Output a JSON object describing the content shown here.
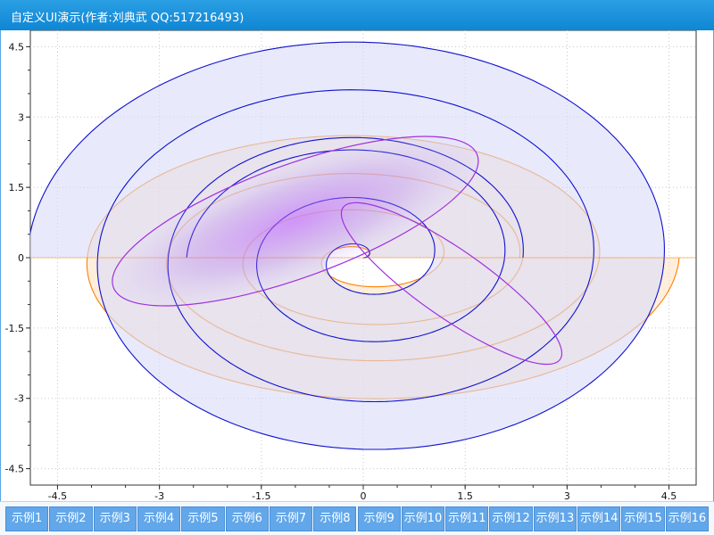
{
  "window": {
    "title": "自定义UI演示(作者:刘典武 QQ:517216493)"
  },
  "chart_data": {
    "type": "line",
    "title": "",
    "xlabel": "",
    "ylabel": "",
    "xlim": [
      -4.9,
      4.9
    ],
    "ylim": [
      -4.85,
      4.85
    ],
    "x_ticks": [
      -4.5,
      -3,
      -1.5,
      0,
      1.5,
      3,
      4.5
    ],
    "x_tick_labels": [
      "-4.5",
      "-3",
      "-1.5",
      "0",
      "1.5",
      "3",
      "4.5"
    ],
    "y_ticks": [
      4.5,
      3,
      1.5,
      0,
      -1.5,
      -3,
      -4.5
    ],
    "y_tick_labels": [
      "4.5",
      "3",
      "1.5",
      "0",
      "-1.5",
      "-3",
      "-4.5"
    ],
    "grid": true,
    "grid_style": "dotted",
    "legend": "none",
    "series": [
      {
        "kind": "spiral-band",
        "color": "#ff8000",
        "fill": "#ffe3c4",
        "theta_max_turns": 2.0,
        "inner_radius_start": 0,
        "inner_radius_end": 2.35,
        "outer_radius_end": 4.65,
        "x_scale": 1.0,
        "y_scale": 0.69
      },
      {
        "kind": "spiral-band",
        "color": "#1010d0",
        "fill": "#d8dcf8",
        "theta_max_turns": 2.5,
        "inner_radius_start": 0,
        "inner_radius_end": 2.6,
        "outer_radius_end": 4.95,
        "x_scale": 1.0,
        "y_scale": 0.98
      },
      {
        "kind": "ellipse",
        "color": "#a030e0",
        "cx": -1.0,
        "cy": 0.78,
        "rx": 2.85,
        "ry": 1.2,
        "rotation_deg": -20
      },
      {
        "kind": "ellipse",
        "color": "#a030e0",
        "cx": 1.3,
        "cy": -0.55,
        "rx": 1.95,
        "ry": 0.72,
        "rotation_deg": 35
      }
    ]
  },
  "buttons": [
    {
      "label": "示例1"
    },
    {
      "label": "示例2"
    },
    {
      "label": "示例3"
    },
    {
      "label": "示例4"
    },
    {
      "label": "示例5"
    },
    {
      "label": "示例6"
    },
    {
      "label": "示例7"
    },
    {
      "label": "示例8"
    },
    {
      "label": "示例9"
    },
    {
      "label": "示例10"
    },
    {
      "label": "示例11"
    },
    {
      "label": "示例12"
    },
    {
      "label": "示例13"
    },
    {
      "label": "示例14"
    },
    {
      "label": "示例15"
    },
    {
      "label": "示例16"
    }
  ],
  "colors": {
    "titlebar": "#1a93dc",
    "button": "#62a7ea",
    "button_text": "#ffffff",
    "axis_highlight": "#ff8000"
  }
}
